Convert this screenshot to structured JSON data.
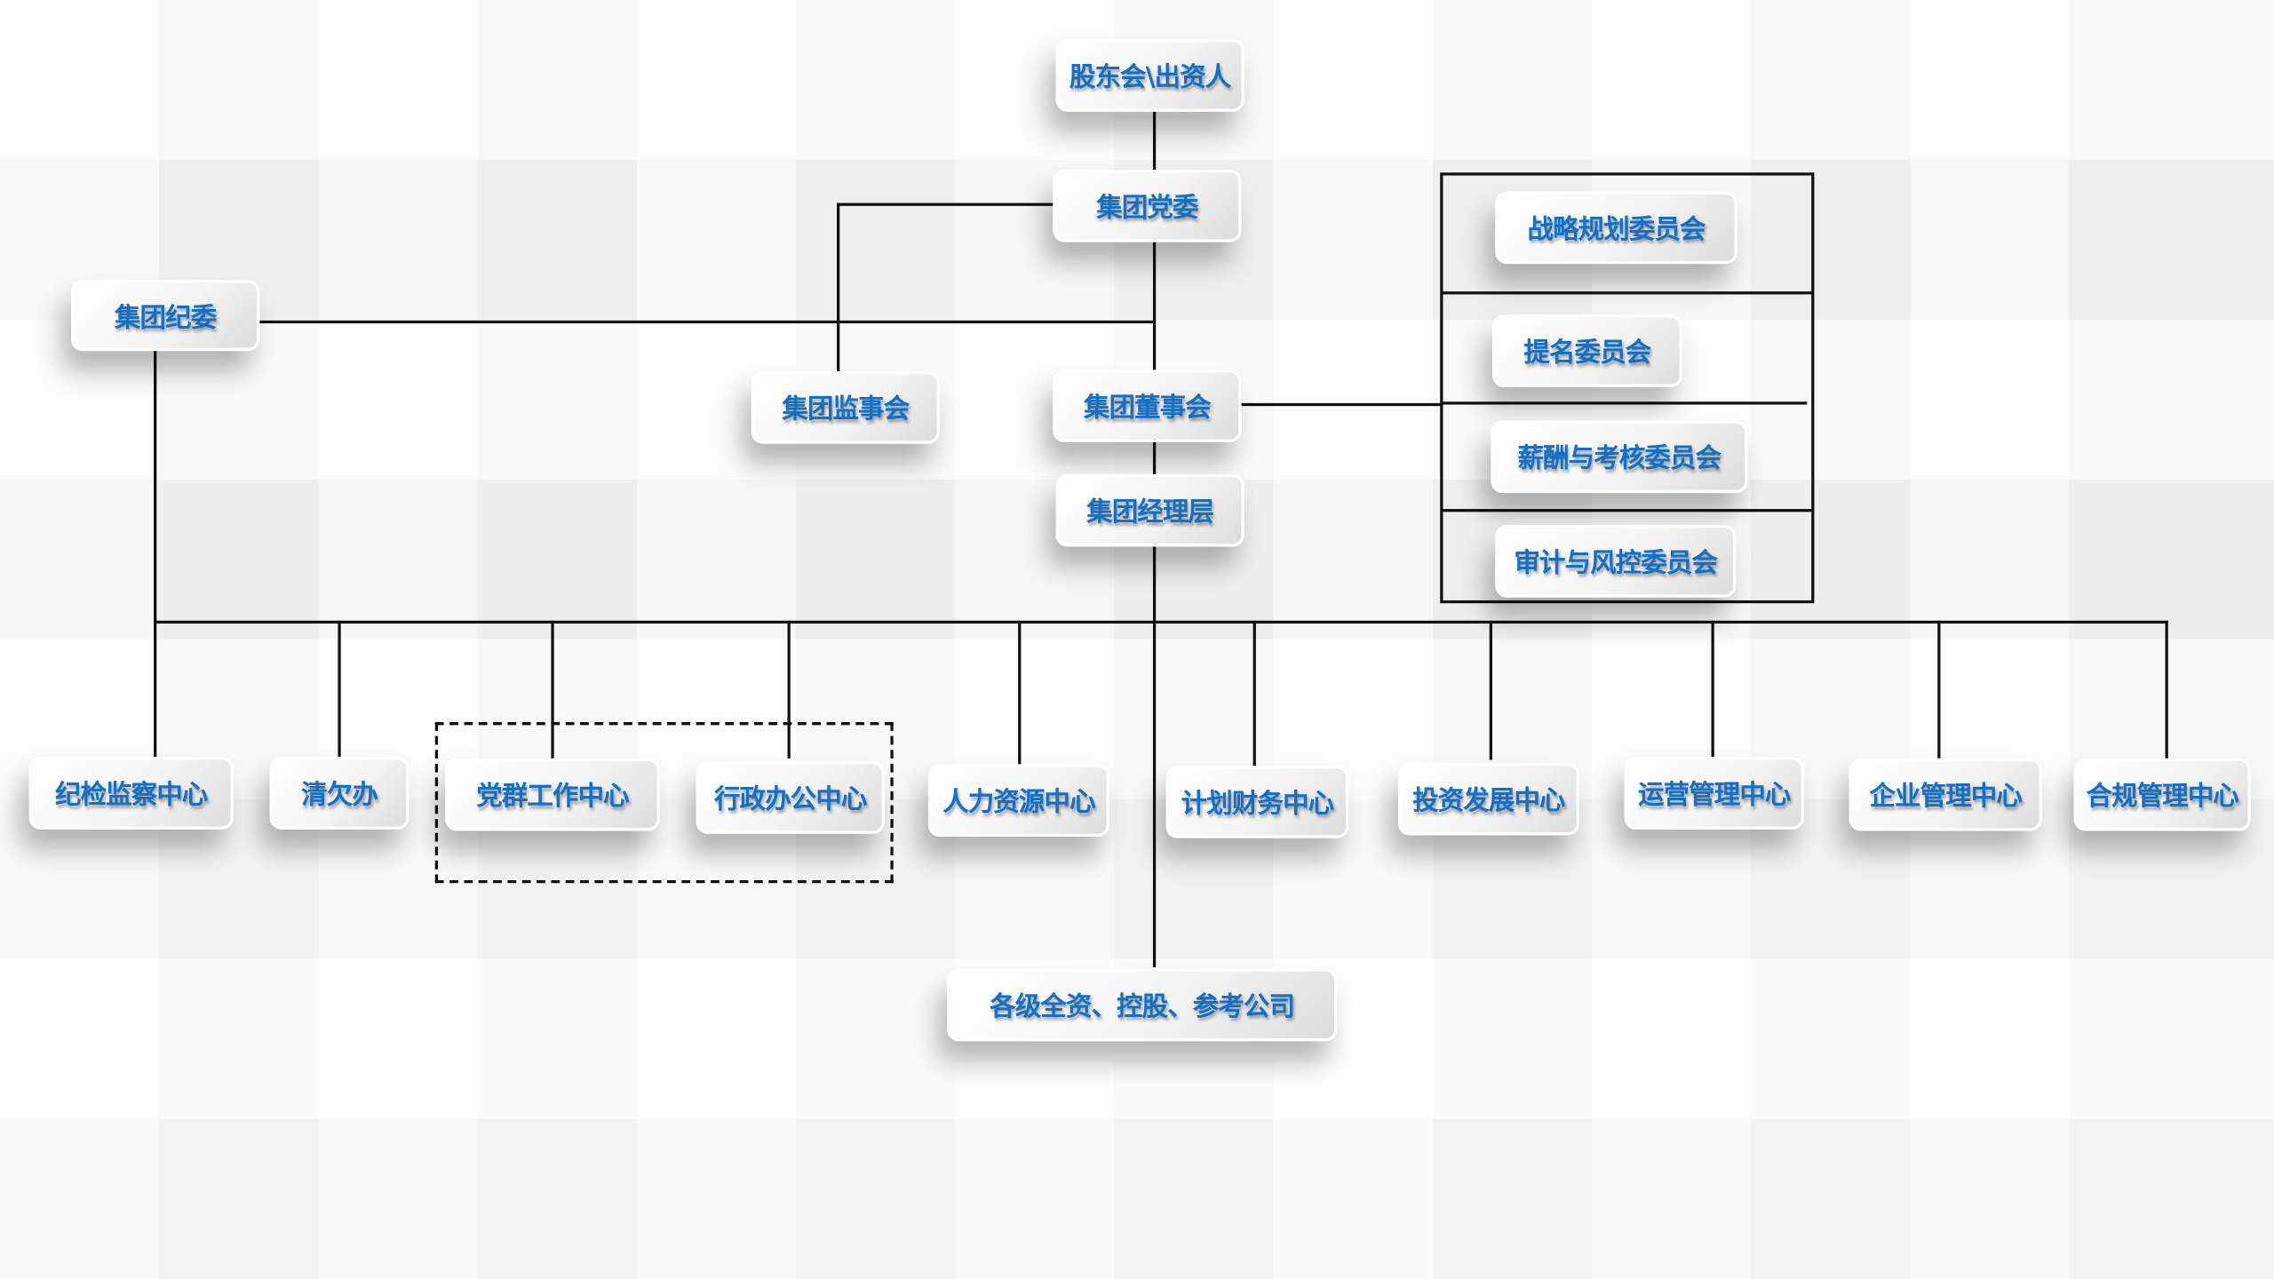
{
  "top": {
    "shareholders": "股东会\\出资人",
    "party_committee": "集团党委",
    "discipline_committee": "集团纪委",
    "supervisory_board": "集团监事会",
    "board_of_directors": "集团董事会",
    "management": "集团经理层"
  },
  "committees": [
    "战略规划委员会",
    "提名委员会",
    "薪酬与考核委员会",
    "审计与风控委员会"
  ],
  "departments": [
    "纪检监察中心",
    "清欠办",
    "党群工作中心",
    "行政办公中心",
    "人力资源中心",
    "计划财务中心",
    "投资发展中心",
    "运营管理中心",
    "企业管理中心",
    "合规管理中心"
  ],
  "subsidiaries": "各级全资、控股、参考公司",
  "colors": {
    "text": "#1570c4",
    "lines": "#111111"
  }
}
